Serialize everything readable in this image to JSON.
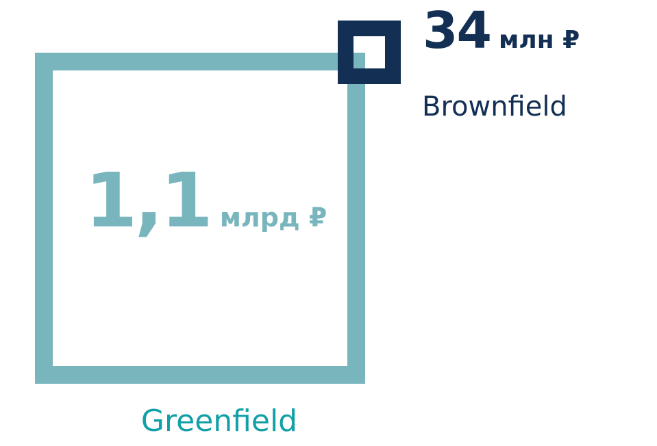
{
  "greenfield": {
    "value": "1,1",
    "unit": "млрд ₽",
    "label": "Greenfield",
    "frame_color": "#78b5bd",
    "value_color": "#78b5bd",
    "label_color": "#12a0a8"
  },
  "brownfield": {
    "value": "34",
    "unit": "млн ₽",
    "label": "Brownfield",
    "color": "#133054"
  }
}
